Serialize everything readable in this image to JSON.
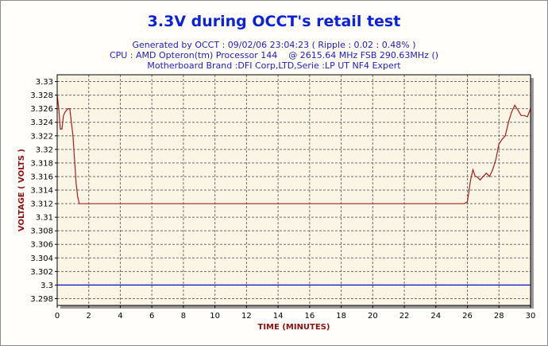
{
  "chart_data": {
    "type": "line",
    "title": "3.3V during OCCT's retail test",
    "subtitle_lines": [
      "Generated by OCCT : 09/02/06 23:04:23 ( Ripple : 0.02 : 0.48% )",
      "CPU : AMD Opteron(tm) Processor 144    @ 2615.64 MHz FSB 290.63MHz ()",
      "Motherboard Brand :DFI Corp,LTD,Serie :LP UT NF4 Expert"
    ],
    "xlabel": "TIME (MINUTES)",
    "ylabel": "VOLTAGE ( VOLTS )",
    "xlim": [
      0,
      30
    ],
    "ylim": [
      3.297,
      3.331
    ],
    "x_ticks": [
      "0",
      "2",
      "4",
      "6",
      "8",
      "10",
      "12",
      "14",
      "16",
      "18",
      "20",
      "22",
      "24",
      "26",
      "28",
      "30"
    ],
    "y_ticks": [
      "3.298",
      "3.3",
      "3.302",
      "3.304",
      "3.306",
      "3.308",
      "3.31",
      "3.312",
      "3.314",
      "3.316",
      "3.318",
      "3.32",
      "3.322",
      "3.324",
      "3.326",
      "3.328",
      "3.33"
    ],
    "grid": true,
    "series": [
      {
        "color": "#a81e1e",
        "x": [
          0,
          0.1,
          0.2,
          0.3,
          0.4,
          0.5,
          0.6,
          0.7,
          0.8,
          0.9,
          1.0,
          1.1,
          1.2,
          1.3,
          1.4,
          1.5,
          1.6,
          1.7,
          1.8,
          2,
          4,
          6,
          8,
          10,
          12,
          14,
          16,
          18,
          20,
          22,
          24,
          25,
          25.8,
          26.0,
          26.2,
          26.35,
          26.5,
          26.6,
          26.8,
          27.0,
          27.2,
          27.4,
          27.6,
          27.8,
          28.0,
          28.2,
          28.4,
          28.6,
          28.8,
          29.0,
          29.2,
          29.4,
          29.6,
          29.8,
          30.0
        ],
        "y": [
          3.328,
          3.326,
          3.323,
          3.323,
          3.325,
          3.3255,
          3.3258,
          3.326,
          3.326,
          3.324,
          3.322,
          3.3185,
          3.315,
          3.313,
          3.312,
          3.312,
          3.312,
          3.312,
          3.312,
          3.312,
          3.312,
          3.312,
          3.312,
          3.312,
          3.312,
          3.312,
          3.312,
          3.312,
          3.312,
          3.312,
          3.312,
          3.312,
          3.312,
          3.3123,
          3.3155,
          3.317,
          3.316,
          3.316,
          3.3155,
          3.316,
          3.3165,
          3.316,
          3.317,
          3.3185,
          3.3208,
          3.3215,
          3.322,
          3.324,
          3.3255,
          3.3265,
          3.3258,
          3.325,
          3.325,
          3.3248,
          3.326
        ]
      },
      {
        "color": "#1010c8",
        "x": [
          0,
          30
        ],
        "y": [
          3.3,
          3.3
        ]
      }
    ]
  }
}
